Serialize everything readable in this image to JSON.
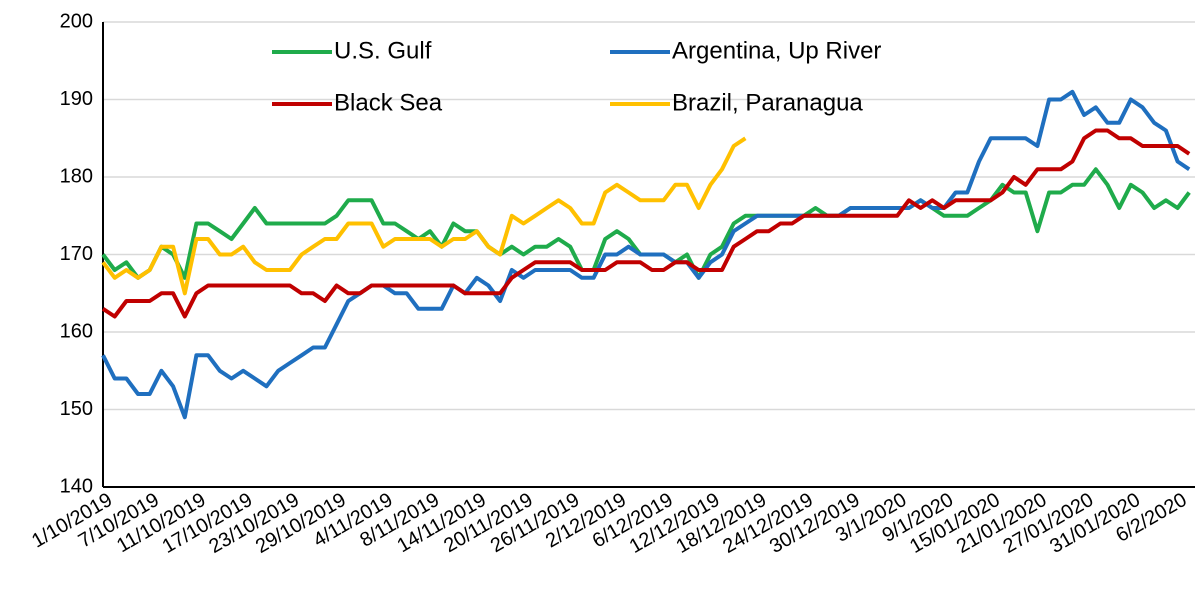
{
  "chart_data": {
    "type": "line",
    "categories": [
      "1/10/2019",
      null,
      null,
      null,
      "7/10/2019",
      null,
      null,
      null,
      "11/10/2019",
      null,
      null,
      null,
      "17/10/2019",
      null,
      null,
      null,
      "23/10/2019",
      null,
      null,
      null,
      "29/10/2019",
      null,
      null,
      null,
      "4/11/2019",
      null,
      null,
      null,
      "8/11/2019",
      null,
      null,
      null,
      "14/11/2019",
      null,
      null,
      null,
      "20/11/2019",
      null,
      null,
      null,
      "26/11/2019",
      null,
      null,
      null,
      "2/12/2019",
      null,
      null,
      null,
      "6/12/2019",
      null,
      null,
      null,
      "12/12/2019",
      null,
      null,
      null,
      "18/12/2019",
      null,
      null,
      null,
      "24/12/2019",
      null,
      null,
      null,
      "30/12/2019",
      null,
      null,
      null,
      "3/1/2020",
      null,
      null,
      null,
      "9/1/2020",
      null,
      null,
      null,
      "15/01/2020",
      null,
      null,
      null,
      "21/01/2020",
      null,
      null,
      null,
      "27/01/2020",
      null,
      null,
      null,
      "31/01/2020",
      null,
      null,
      null,
      "6/2/2020",
      null
    ],
    "series": [
      {
        "name": "U.S. Gulf",
        "color": "#1fab4b",
        "values": [
          170,
          168,
          169,
          167,
          168,
          171,
          170,
          167,
          174,
          174,
          173,
          172,
          174,
          176,
          174,
          174,
          174,
          174,
          174,
          174,
          175,
          177,
          177,
          177,
          174,
          174,
          173,
          172,
          173,
          171,
          174,
          173,
          173,
          171,
          170,
          171,
          170,
          171,
          171,
          172,
          171,
          168,
          168,
          172,
          173,
          172,
          170,
          170,
          170,
          169,
          170,
          167,
          170,
          171,
          174,
          175,
          175,
          175,
          175,
          175,
          175,
          176,
          175,
          175,
          176,
          176,
          176,
          176,
          176,
          176,
          177,
          176,
          175,
          175,
          175,
          176,
          177,
          179,
          178,
          178,
          173,
          178,
          178,
          179,
          179,
          181,
          179,
          176,
          179,
          178,
          176,
          177,
          176,
          178
        ]
      },
      {
        "name": "Argentina, Up River",
        "color": "#1f6fbf",
        "values": [
          157,
          154,
          154,
          152,
          152,
          155,
          153,
          149,
          157,
          157,
          155,
          154,
          155,
          154,
          153,
          155,
          156,
          157,
          158,
          158,
          161,
          164,
          165,
          166,
          166,
          165,
          165,
          163,
          163,
          163,
          166,
          165,
          167,
          166,
          164,
          168,
          167,
          168,
          168,
          168,
          168,
          167,
          167,
          170,
          170,
          171,
          170,
          170,
          170,
          169,
          169,
          167,
          169,
          170,
          173,
          174,
          175,
          175,
          175,
          175,
          175,
          175,
          175,
          175,
          176,
          176,
          176,
          176,
          176,
          176,
          177,
          176,
          176,
          178,
          178,
          182,
          185,
          185,
          185,
          185,
          184,
          190,
          190,
          191,
          188,
          189,
          187,
          187,
          190,
          189,
          187,
          186,
          182,
          181
        ]
      },
      {
        "name": "Black Sea",
        "color": "#c00000",
        "values": [
          163,
          162,
          164,
          164,
          164,
          165,
          165,
          162,
          165,
          166,
          166,
          166,
          166,
          166,
          166,
          166,
          166,
          165,
          165,
          164,
          166,
          165,
          165,
          166,
          166,
          166,
          166,
          166,
          166,
          166,
          166,
          165,
          165,
          165,
          165,
          167,
          168,
          169,
          169,
          169,
          169,
          168,
          168,
          168,
          169,
          169,
          169,
          168,
          168,
          169,
          169,
          168,
          168,
          168,
          171,
          172,
          173,
          173,
          174,
          174,
          175,
          175,
          175,
          175,
          175,
          175,
          175,
          175,
          175,
          177,
          176,
          177,
          176,
          177,
          177,
          177,
          177,
          178,
          180,
          179,
          181,
          181,
          181,
          182,
          185,
          186,
          186,
          185,
          185,
          184,
          184,
          184,
          184,
          183
        ]
      },
      {
        "name": "Brazil, Paranagua",
        "color": "#ffc000",
        "values": [
          169,
          167,
          168,
          167,
          168,
          171,
          171,
          165,
          172,
          172,
          170,
          170,
          171,
          169,
          168,
          168,
          168,
          170,
          171,
          172,
          172,
          174,
          174,
          174,
          171,
          172,
          172,
          172,
          172,
          171,
          172,
          172,
          173,
          171,
          170,
          175,
          174,
          175,
          176,
          177,
          176,
          174,
          174,
          178,
          179,
          178,
          177,
          177,
          177,
          179,
          179,
          176,
          179,
          181,
          184,
          185,
          null,
          null,
          null,
          null,
          null,
          null,
          null,
          null,
          null,
          null,
          null,
          null,
          null,
          null,
          null,
          null,
          null,
          null,
          null,
          null,
          null,
          null,
          null,
          null,
          null,
          null,
          null,
          null,
          null,
          null,
          null,
          null,
          null,
          null,
          null,
          null,
          null,
          null
        ]
      }
    ],
    "ylim": [
      140,
      200
    ],
    "yticks": [
      140,
      150,
      160,
      170,
      180,
      190,
      200
    ],
    "grid": true,
    "legend": "top"
  }
}
